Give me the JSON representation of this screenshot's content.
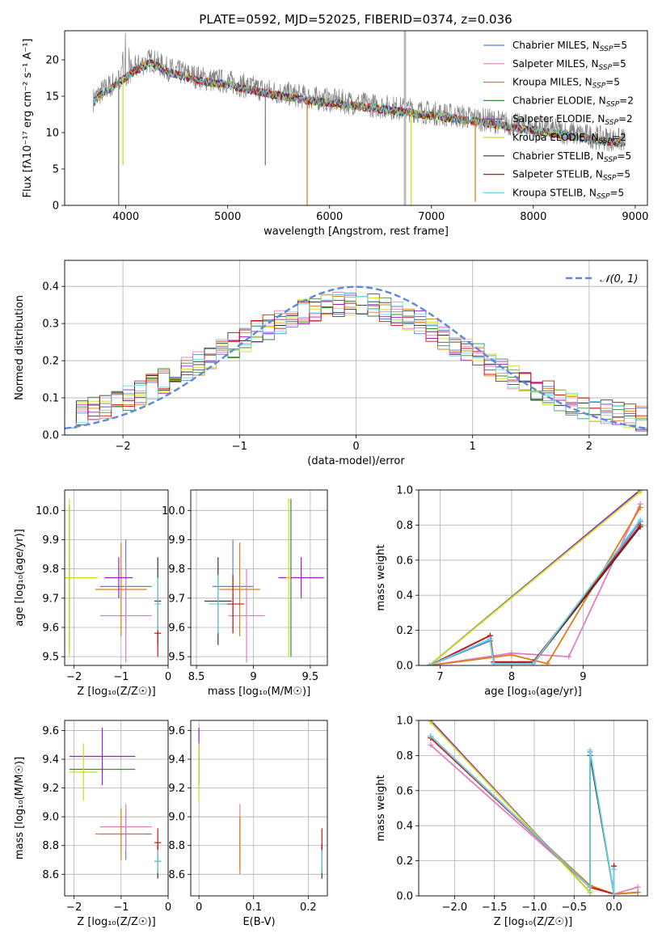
{
  "figure": {
    "title": "PLATE=0592, MJD=52025, FIBERID=0374, z=0.036"
  },
  "colors": {
    "chabrier_miles": "#5b7fd9",
    "salpeter_miles": "#e07ec0",
    "kroupa_miles": "#e07b1a",
    "chabrier_elodie": "#3a8a3a",
    "salpeter_elodie": "#9a1fc8",
    "kroupa_elodie": "#c8e01a",
    "chabrier_stelib": "#333333",
    "salpeter_stelib": "#c81414",
    "kroupa_stelib": "#6ad2e0",
    "data_spectrum": "#808080",
    "grid": "#b0b0b0",
    "normal_curve": "#5b8ad9"
  },
  "chart_data": [
    {
      "type": "line",
      "panel": "spectrum",
      "title": "PLATE=0592, MJD=52025, FIBERID=0374, z=0.036",
      "xlabel": "wavelength [Angstrom, rest frame]",
      "ylabel": "Flux [fλ10⁻¹⁷ erg cm⁻² s⁻¹ A⁻¹]",
      "xlim": [
        3400,
        9120
      ],
      "ylim": [
        0,
        24
      ],
      "xticks": [
        4000,
        5000,
        6000,
        7000,
        8000,
        9000
      ],
      "yticks": [
        0,
        5,
        10,
        15,
        20
      ],
      "grid": false,
      "legend_placement": "top-right",
      "legend": [
        "Chabrier MILES, NSSP=5",
        "Salpeter MILES, NSSP=5",
        "Kroupa MILES, NSSP=5",
        "Chabrier ELODIE, NSSP=2",
        "Salpeter ELODIE, NSSP=2",
        "Kroupa ELODIE, NSSP=2",
        "Chabrier STELIB, NSSP=5",
        "Salpeter STELIB, NSSP=5",
        "Kroupa STELIB, NSSP=5"
      ],
      "continuum": {
        "x": [
          3680,
          3750,
          3850,
          3950,
          4100,
          4250,
          4400,
          4600,
          4800,
          5000,
          5200,
          5500,
          5800,
          6100,
          6400,
          6700,
          7000,
          7300,
          7600,
          7900,
          8200,
          8500,
          8800
        ],
        "y": [
          14.5,
          15.5,
          16.5,
          17.5,
          19.0,
          20.0,
          18.8,
          18.0,
          17.3,
          17.0,
          16.3,
          15.5,
          14.8,
          14.3,
          13.8,
          13.3,
          12.7,
          12.2,
          11.6,
          10.9,
          10.3,
          9.6,
          9.0
        ]
      },
      "dropouts": [
        {
          "x": 3930,
          "y": 0,
          "series": "data"
        },
        {
          "x": 3972,
          "y": 5.5,
          "series": "kroupa_elodie"
        },
        {
          "x": 5370,
          "y": 5.5,
          "series": "data"
        },
        {
          "x": 5780,
          "y": 0,
          "series": "kroupa_miles"
        },
        {
          "x": 6800,
          "y": 0,
          "series": "kroupa_elodie"
        },
        {
          "x": 7430,
          "y": 0.5,
          "series": "kroupa_miles"
        }
      ],
      "spike": {
        "x": 6740,
        "y": 24
      }
    },
    {
      "type": "line",
      "panel": "residual_histograms",
      "xlabel": "(data-model)/error",
      "ylabel": "Normed distribution",
      "xlim": [
        -2.5,
        2.5
      ],
      "ylim": [
        0,
        0.47
      ],
      "xticks": [
        -2,
        -1,
        0,
        1,
        2
      ],
      "yticks": [
        0.0,
        0.1,
        0.2,
        0.3,
        0.4
      ],
      "grid": true,
      "legend_placement": "top-right",
      "legend": [
        "𝒩(0, 1)"
      ],
      "histogram_envelope": {
        "x": [
          -2.5,
          -2.0,
          -1.5,
          -1.0,
          -0.5,
          0.0,
          0.5,
          1.0,
          1.5,
          2.0,
          2.5
        ],
        "y": [
          0.05,
          0.09,
          0.17,
          0.25,
          0.33,
          0.36,
          0.31,
          0.22,
          0.13,
          0.07,
          0.04
        ]
      },
      "normal_mean": 0,
      "normal_sigma": 1
    },
    {
      "type": "scatter",
      "panel": "age_vs_Z",
      "xlabel": "Z [log₁₀(Z/Z☉)]",
      "ylabel": "age  [log₁₀(age/yr)]",
      "xlim": [
        -2.2,
        0.0
      ],
      "ylim": [
        9.47,
        10.07
      ],
      "xticks": [
        -2,
        -1,
        0
      ],
      "yticks": [
        9.5,
        9.6,
        9.7,
        9.8,
        9.9,
        10.0
      ],
      "grid": true,
      "points": [
        {
          "series": "chabrier_miles",
          "x": -0.9,
          "xerr": 0.55,
          "y": 9.74,
          "yerr": 0.16
        },
        {
          "series": "salpeter_miles",
          "x": -0.9,
          "xerr": 0.55,
          "y": 9.64,
          "yerr": 0.16
        },
        {
          "series": "kroupa_miles",
          "x": -1.0,
          "xerr": 0.55,
          "y": 9.73,
          "yerr": 0.16
        },
        {
          "series": "chabrier_elodie",
          "x": -2.1,
          "xerr": 0.02,
          "y": 9.77,
          "yerr": 0.25
        },
        {
          "series": "salpeter_elodie",
          "x": -1.05,
          "xerr": 0.3,
          "y": 9.77,
          "yerr": 0.07
        },
        {
          "series": "kroupa_elodie",
          "x": -2.1,
          "xerr": 0.6,
          "y": 9.77,
          "yerr": 0.27
        },
        {
          "series": "chabrier_stelib",
          "x": -0.22,
          "xerr": 0.07,
          "y": 9.69,
          "yerr": 0.15
        },
        {
          "series": "salpeter_stelib",
          "x": -0.22,
          "xerr": 0.07,
          "y": 9.58,
          "yerr": 0.08
        },
        {
          "series": "kroupa_stelib",
          "x": -0.22,
          "xerr": 0.07,
          "y": 9.68,
          "yerr": 0.09
        }
      ]
    },
    {
      "type": "scatter",
      "panel": "age_vs_mass",
      "xlabel": "mass [log₁₀(M/M☉)]",
      "ylabel": "",
      "xlim": [
        8.45,
        9.65
      ],
      "ylim": [
        9.47,
        10.07
      ],
      "xticks": [
        8.5,
        9.0,
        9.5
      ],
      "yticks": [
        9.5,
        9.6,
        9.7,
        9.8,
        9.9,
        10.0
      ],
      "grid": true,
      "points": [
        {
          "series": "chabrier_miles",
          "x": 8.82,
          "xerr": 0.18,
          "y": 9.74,
          "yerr": 0.16
        },
        {
          "series": "salpeter_miles",
          "x": 8.94,
          "xerr": 0.16,
          "y": 9.64,
          "yerr": 0.16
        },
        {
          "series": "kroupa_miles",
          "x": 8.88,
          "xerr": 0.18,
          "y": 9.73,
          "yerr": 0.16
        },
        {
          "series": "chabrier_elodie",
          "x": 9.33,
          "xerr": 0.02,
          "y": 9.77,
          "yerr": 0.27
        },
        {
          "series": "salpeter_elodie",
          "x": 9.42,
          "xerr": 0.2,
          "y": 9.77,
          "yerr": 0.07
        },
        {
          "series": "kroupa_elodie",
          "x": 9.31,
          "xerr": 0.02,
          "y": 9.77,
          "yerr": 0.27
        },
        {
          "series": "chabrier_stelib",
          "x": 8.69,
          "xerr": 0.12,
          "y": 9.69,
          "yerr": 0.15
        },
        {
          "series": "salpeter_stelib",
          "x": 8.82,
          "xerr": 0.1,
          "y": 9.68,
          "yerr": 0.1
        },
        {
          "series": "kroupa_stelib",
          "x": 8.69,
          "xerr": 0.08,
          "y": 9.68,
          "yerr": 0.1
        }
      ]
    },
    {
      "type": "line",
      "panel": "mass_weight_vs_age",
      "xlabel": "age  [log₁₀(age/yr)]",
      "ylabel": "mass weight",
      "xlim": [
        6.7,
        9.9
      ],
      "ylim": [
        0,
        1
      ],
      "xticks": [
        7,
        8,
        9
      ],
      "yticks": [
        0.0,
        0.2,
        0.4,
        0.6,
        0.8,
        1.0
      ],
      "grid": true,
      "series": [
        {
          "key": "chabrier_miles",
          "x": [
            6.85,
            7.7,
            7.75,
            8.3,
            9.8
          ],
          "y": [
            0.0,
            0.14,
            0.01,
            0.01,
            0.82
          ]
        },
        {
          "key": "salpeter_miles",
          "x": [
            6.85,
            8.0,
            8.8,
            9.8
          ],
          "y": [
            0.0,
            0.07,
            0.05,
            0.92
          ]
        },
        {
          "key": "kroupa_miles",
          "x": [
            6.85,
            8.0,
            8.5,
            9.8
          ],
          "y": [
            0.0,
            0.06,
            0.01,
            0.9
          ]
        },
        {
          "key": "chabrier_elodie",
          "x": [
            6.85,
            9.8
          ],
          "y": [
            0.0,
            1.0
          ]
        },
        {
          "key": "salpeter_elodie",
          "x": [
            6.85,
            9.8
          ],
          "y": [
            0.0,
            1.0
          ]
        },
        {
          "key": "kroupa_elodie",
          "x": [
            6.85,
            9.8
          ],
          "y": [
            0.0,
            0.99
          ]
        },
        {
          "key": "chabrier_stelib",
          "x": [
            6.85,
            7.7,
            7.75,
            8.3,
            9.8
          ],
          "y": [
            0.0,
            0.17,
            0.02,
            0.01,
            0.79
          ]
        },
        {
          "key": "salpeter_stelib",
          "x": [
            6.85,
            7.7,
            7.75,
            8.3,
            9.8
          ],
          "y": [
            0.0,
            0.17,
            0.02,
            0.02,
            0.8
          ]
        },
        {
          "key": "kroupa_stelib",
          "x": [
            6.85,
            7.7,
            7.75,
            8.3,
            9.8
          ],
          "y": [
            0.0,
            0.15,
            0.01,
            0.01,
            0.83
          ]
        }
      ]
    },
    {
      "type": "scatter",
      "panel": "mass_vs_Z",
      "xlabel": "Z [log₁₀(Z/Z☉)]",
      "ylabel": "mass [log₁₀(M/M☉)]",
      "xlim": [
        -2.2,
        0.0
      ],
      "ylim": [
        8.45,
        9.67
      ],
      "xticks": [
        -2,
        -1,
        0
      ],
      "yticks": [
        8.6,
        8.8,
        9.0,
        9.2,
        9.4,
        9.6
      ],
      "grid": true,
      "points": [
        {
          "series": "chabrier_miles",
          "x": -0.9,
          "xerr": 0.55,
          "y": 8.88,
          "yerr": 0.18
        },
        {
          "series": "salpeter_miles",
          "x": -0.9,
          "xerr": 0.55,
          "y": 8.93,
          "yerr": 0.16
        },
        {
          "series": "kroupa_miles",
          "x": -1.0,
          "xerr": 0.55,
          "y": 8.88,
          "yerr": 0.18
        },
        {
          "series": "chabrier_elodie",
          "x": -1.4,
          "xerr": 0.7,
          "y": 9.33,
          "yerr": 0.03
        },
        {
          "series": "salpeter_elodie",
          "x": -1.4,
          "xerr": 0.7,
          "y": 9.42,
          "yerr": 0.2
        },
        {
          "series": "kroupa_elodie",
          "x": -1.8,
          "xerr": 0.3,
          "y": 9.31,
          "yerr": 0.2
        },
        {
          "series": "chabrier_stelib",
          "x": -0.22,
          "xerr": 0.07,
          "y": 8.69,
          "yerr": 0.12
        },
        {
          "series": "salpeter_stelib",
          "x": -0.22,
          "xerr": 0.07,
          "y": 8.82,
          "yerr": 0.1
        },
        {
          "series": "kroupa_stelib",
          "x": -0.22,
          "xerr": 0.07,
          "y": 8.69,
          "yerr": 0.08
        }
      ]
    },
    {
      "type": "scatter",
      "panel": "mass_vs_ebv",
      "xlabel": "E(B-V)",
      "ylabel": "",
      "xlim": [
        -0.015,
        0.235
      ],
      "ylim": [
        8.45,
        9.67
      ],
      "xticks": [
        0.0,
        0.1,
        0.2
      ],
      "yticks": [
        8.6,
        8.8,
        9.0,
        9.2,
        9.4,
        9.6
      ],
      "grid": true,
      "points": [
        {
          "series": "chabrier_miles",
          "x": 0.075,
          "y": 8.82,
          "yerr": 0.18
        },
        {
          "series": "salpeter_miles",
          "x": 0.075,
          "y": 8.93,
          "yerr": 0.16
        },
        {
          "series": "kroupa_miles",
          "x": 0.075,
          "y": 8.8,
          "yerr": 0.2
        },
        {
          "series": "chabrier_elodie",
          "x": 0.0,
          "y": 9.33,
          "yerr": 0.1
        },
        {
          "series": "salpeter_elodie",
          "x": 0.0,
          "y": 9.42,
          "yerr": 0.2
        },
        {
          "series": "kroupa_elodie",
          "x": 0.0,
          "y": 9.31,
          "yerr": 0.2
        },
        {
          "series": "chabrier_stelib",
          "x": 0.225,
          "y": 8.69,
          "yerr": 0.12
        },
        {
          "series": "salpeter_stelib",
          "x": 0.225,
          "y": 8.82,
          "yerr": 0.1
        },
        {
          "series": "kroupa_stelib",
          "x": 0.225,
          "y": 8.69,
          "yerr": 0.08
        }
      ]
    },
    {
      "type": "line",
      "panel": "mass_weight_vs_Z",
      "xlabel": "Z [log₁₀(Z/Z☉)]",
      "ylabel": "mass weight",
      "xlim": [
        -2.45,
        0.42
      ],
      "ylim": [
        0,
        1
      ],
      "xticks": [
        -2.0,
        -1.5,
        -1.0,
        -0.5,
        0.0
      ],
      "yticks": [
        0.0,
        0.2,
        0.4,
        0.6,
        0.8,
        1.0
      ],
      "grid": true,
      "series": [
        {
          "key": "chabrier_miles",
          "x": [
            -2.3,
            -0.3,
            -0.3,
            0.0,
            0.3
          ],
          "y": [
            0.91,
            0.05,
            0.82,
            0.01,
            0.02
          ]
        },
        {
          "key": "salpeter_miles",
          "x": [
            -2.3,
            -0.3,
            0.0,
            0.3
          ],
          "y": [
            0.86,
            0.05,
            0.01,
            0.05
          ]
        },
        {
          "key": "kroupa_miles",
          "x": [
            -2.3,
            -0.3,
            0.0,
            0.3
          ],
          "y": [
            0.9,
            0.06,
            0.01,
            0.02
          ]
        },
        {
          "key": "chabrier_elodie",
          "x": [
            -2.3,
            -0.3
          ],
          "y": [
            1.0,
            0.02
          ]
        },
        {
          "key": "salpeter_elodie",
          "x": [
            -2.3,
            -0.3
          ],
          "y": [
            1.0,
            0.02
          ]
        },
        {
          "key": "kroupa_elodie",
          "x": [
            -2.3,
            -0.3
          ],
          "y": [
            0.99,
            0.02
          ]
        },
        {
          "key": "chabrier_stelib",
          "x": [
            -2.3,
            -0.3,
            -0.3,
            0.0,
            0.0
          ],
          "y": [
            0.91,
            0.05,
            0.8,
            0.01,
            0.17
          ]
        },
        {
          "key": "salpeter_stelib",
          "x": [
            -2.3,
            -0.3,
            0.0,
            0.0
          ],
          "y": [
            0.9,
            0.05,
            0.01,
            0.17
          ]
        },
        {
          "key": "kroupa_stelib",
          "x": [
            -2.3,
            -0.3,
            -0.3,
            0.0,
            0.0
          ],
          "y": [
            0.91,
            0.05,
            0.83,
            0.01,
            0.15
          ]
        }
      ]
    }
  ]
}
